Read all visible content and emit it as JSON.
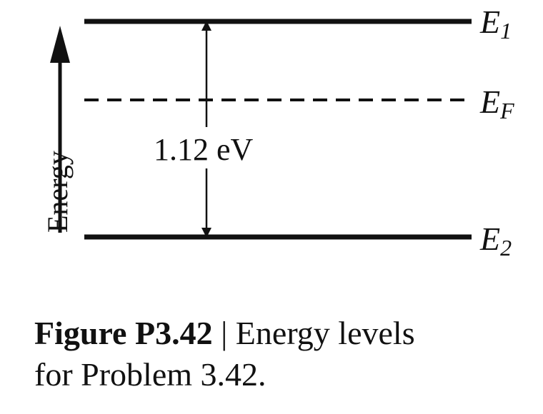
{
  "diagram": {
    "levels": [
      {
        "id": "E1",
        "symbol": "E",
        "subscript": "1",
        "line_style": "solid"
      },
      {
        "id": "EF",
        "symbol": "E",
        "subscript": "F",
        "line_style": "dashed"
      },
      {
        "id": "E2",
        "symbol": "E",
        "subscript": "2",
        "line_style": "solid"
      }
    ],
    "gap_label": "1.12 eV",
    "axis_label": "Energy",
    "colors": {
      "ink": "#111111",
      "background": "#ffffff"
    }
  },
  "caption": {
    "number": "Figure P3.42",
    "separator": " | ",
    "text_line1": "Energy levels",
    "text_line2": "for Problem 3.42."
  }
}
